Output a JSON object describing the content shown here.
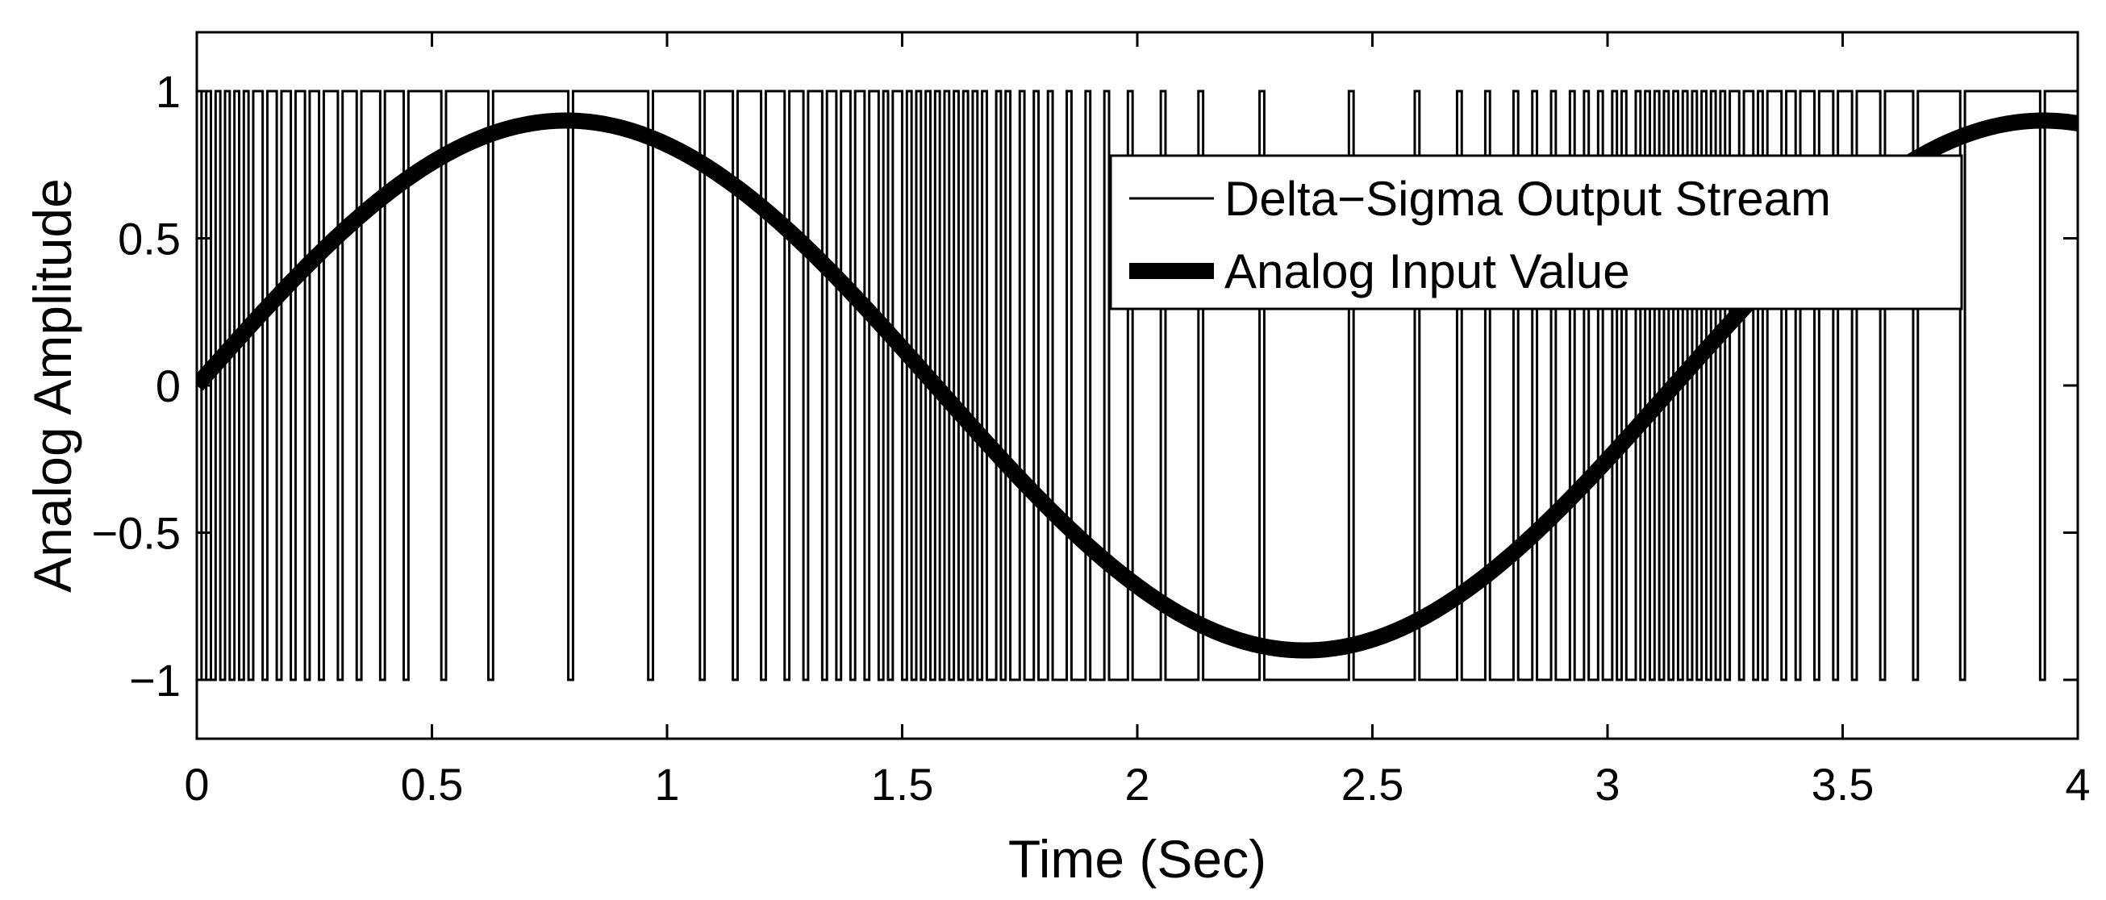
{
  "chart_data": {
    "type": "line",
    "title": "",
    "xlabel": "Time (Sec)",
    "ylabel": "Analog Amplitude",
    "xlim": [
      0,
      4
    ],
    "ylim": [
      -1.2,
      1.2
    ],
    "grid": false,
    "legend_position": "top-right",
    "xticks": [
      0,
      0.5,
      1,
      1.5,
      2,
      2.5,
      3,
      3.5,
      4
    ],
    "xtick_labels": [
      "0",
      "0.5",
      "1",
      "1.5",
      "2",
      "2.5",
      "3",
      "3.5",
      "4"
    ],
    "yticks": [
      1,
      0.5,
      0,
      -0.5,
      -1
    ],
    "ytick_labels": [
      "1",
      "0.5",
      "0",
      "−0.5",
      "−1"
    ],
    "series": [
      {
        "name": "Delta−Sigma Output Stream",
        "style": "thin-line",
        "kind": "delta-sigma-bitstream",
        "levels": [
          -1,
          1
        ],
        "sample_period": 0.01,
        "modulator_input": "0.9*sin(2*t)"
      },
      {
        "name": "Analog Input Value",
        "style": "thick-line",
        "kind": "function",
        "expression": "0.9*sin(2*t)",
        "amplitude": 0.9,
        "angular_frequency": 2,
        "x_start": 0,
        "x_end": 4
      }
    ],
    "legend": [
      {
        "label": "Delta−Sigma Output Stream",
        "style": "thin-line"
      },
      {
        "label": "Analog Input Value",
        "style": "thick-line"
      }
    ]
  },
  "colors": {
    "line": "#000000",
    "background": "#ffffff",
    "axes": "#000000"
  }
}
